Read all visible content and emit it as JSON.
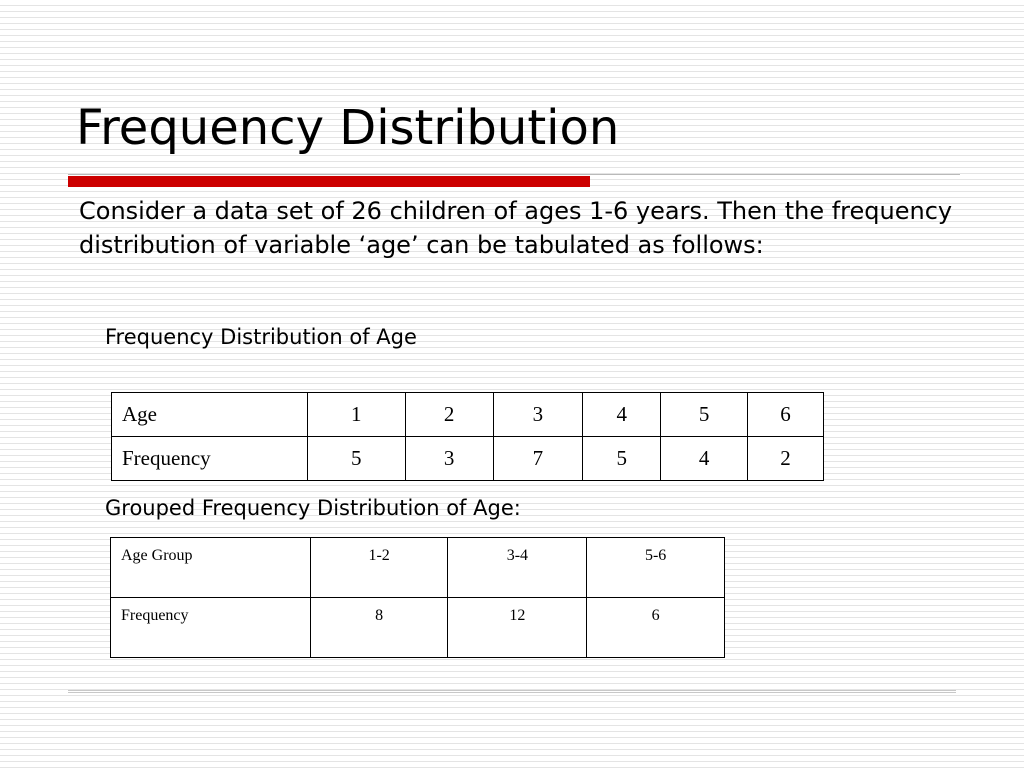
{
  "slide": {
    "title": "Frequency Distribution",
    "intro": "Consider a data set of 26 children of ages 1-6 years. Then the frequency distribution of variable ‘age’ can be tabulated as follows:",
    "colors": {
      "accent_bar": "#cc0000",
      "stripe": "#e4e4e4"
    }
  },
  "table_age": {
    "heading": "Frequency Distribution of Age",
    "rows": [
      {
        "label": "Age",
        "cells": [
          "1",
          "2",
          "3",
          "4",
          "5",
          "6"
        ]
      },
      {
        "label": "Frequency",
        "cells": [
          "5",
          "3",
          "7",
          "5",
          "4",
          "2"
        ]
      }
    ]
  },
  "table_grouped": {
    "heading": "Grouped Frequency Distribution of Age:",
    "rows": [
      {
        "label": "Age Group",
        "cells": [
          "1-2",
          "3-4",
          "5-6"
        ]
      },
      {
        "label": "Frequency",
        "cells": [
          "8",
          "12",
          "6"
        ]
      }
    ]
  }
}
